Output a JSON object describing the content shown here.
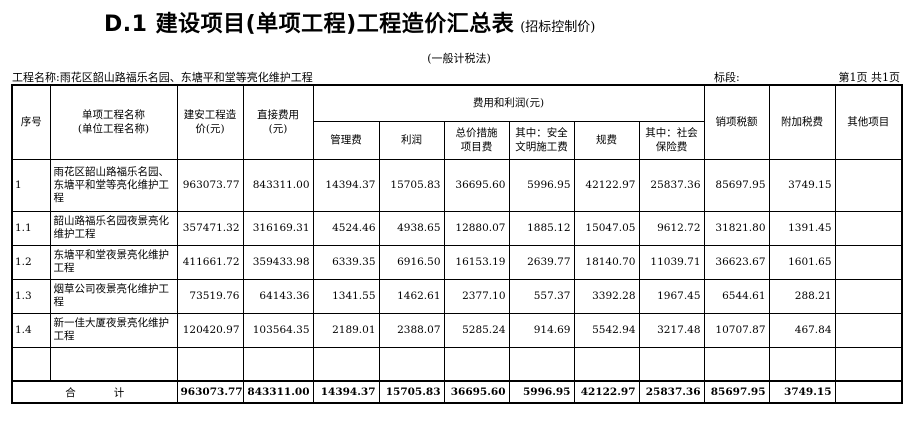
{
  "header": {
    "title": "D.1 建设项目(单项工程)工程造价汇总表",
    "subtitle": "(招标控制价)",
    "method": "(一般计税法)",
    "project_name": "工程名称:雨花区韶山路福乐名园、东塘平和堂等亮化维护工程",
    "section_label": "标段:",
    "page_info": "第1页 共1页"
  },
  "columns": {
    "seq": "序号",
    "name_line1": "单项工程名称",
    "name_line2": "(单位工程名称)",
    "install_line1": "建安工程造",
    "install_line2": "价(元)",
    "direct_line1": "直接费用",
    "direct_line2": "(元)",
    "fees_group": "费用和利润(元)",
    "mgmt": "管理费",
    "profit": "利润",
    "measure_line1": "总价措施",
    "measure_line2": "项目费",
    "safety_line1": "其中：安全",
    "safety_line2": "文明施工费",
    "regulatory": "规费",
    "social_line1": "其中：社会",
    "social_line2": "保险费",
    "vat": "销项税额",
    "surtax": "附加税费",
    "other": "其他项目"
  },
  "rows": [
    {
      "seq": "1",
      "name": "雨花区韶山路福乐名园、东塘平和堂等亮化维护工程",
      "install": "963073.77",
      "direct": "843311.00",
      "mgmt": "14394.37",
      "profit": "15705.83",
      "measure": "36695.60",
      "safety": "5996.95",
      "regulatory": "42122.97",
      "social": "25837.36",
      "vat": "85697.95",
      "surtax": "3749.15",
      "other": ""
    },
    {
      "seq": "1.1",
      "name": "韶山路福乐名园夜景亮化维护工程",
      "install": "357471.32",
      "direct": "316169.31",
      "mgmt": "4524.46",
      "profit": "4938.65",
      "measure": "12880.07",
      "safety": "1885.12",
      "regulatory": "15047.05",
      "social": "9612.72",
      "vat": "31821.80",
      "surtax": "1391.45",
      "other": ""
    },
    {
      "seq": "1.2",
      "name": "东塘平和堂夜景亮化维护工程",
      "install": "411661.72",
      "direct": "359433.98",
      "mgmt": "6339.35",
      "profit": "6916.50",
      "measure": "16153.19",
      "safety": "2639.77",
      "regulatory": "18140.70",
      "social": "11039.71",
      "vat": "36623.67",
      "surtax": "1601.65",
      "other": ""
    },
    {
      "seq": "1.3",
      "name": "烟草公司夜景亮化维护工程",
      "install": "73519.76",
      "direct": "64143.36",
      "mgmt": "1341.55",
      "profit": "1462.61",
      "measure": "2377.10",
      "safety": "557.37",
      "regulatory": "3392.28",
      "social": "1967.45",
      "vat": "6544.61",
      "surtax": "288.21",
      "other": ""
    },
    {
      "seq": "1.4",
      "name": "新一佳大厦夜景亮化维护工程",
      "install": "120420.97",
      "direct": "103564.35",
      "mgmt": "2189.01",
      "profit": "2388.07",
      "measure": "5285.24",
      "safety": "914.69",
      "regulatory": "5542.94",
      "social": "3217.48",
      "vat": "10707.87",
      "surtax": "467.84",
      "other": ""
    }
  ],
  "total": {
    "label_a": "合",
    "label_b": "计",
    "install": "963073.77",
    "direct": "843311.00",
    "mgmt": "14394.37",
    "profit": "15705.83",
    "measure": "36695.60",
    "safety": "5996.95",
    "regulatory": "42122.97",
    "social": "25837.36",
    "vat": "85697.95",
    "surtax": "3749.15",
    "other": ""
  }
}
